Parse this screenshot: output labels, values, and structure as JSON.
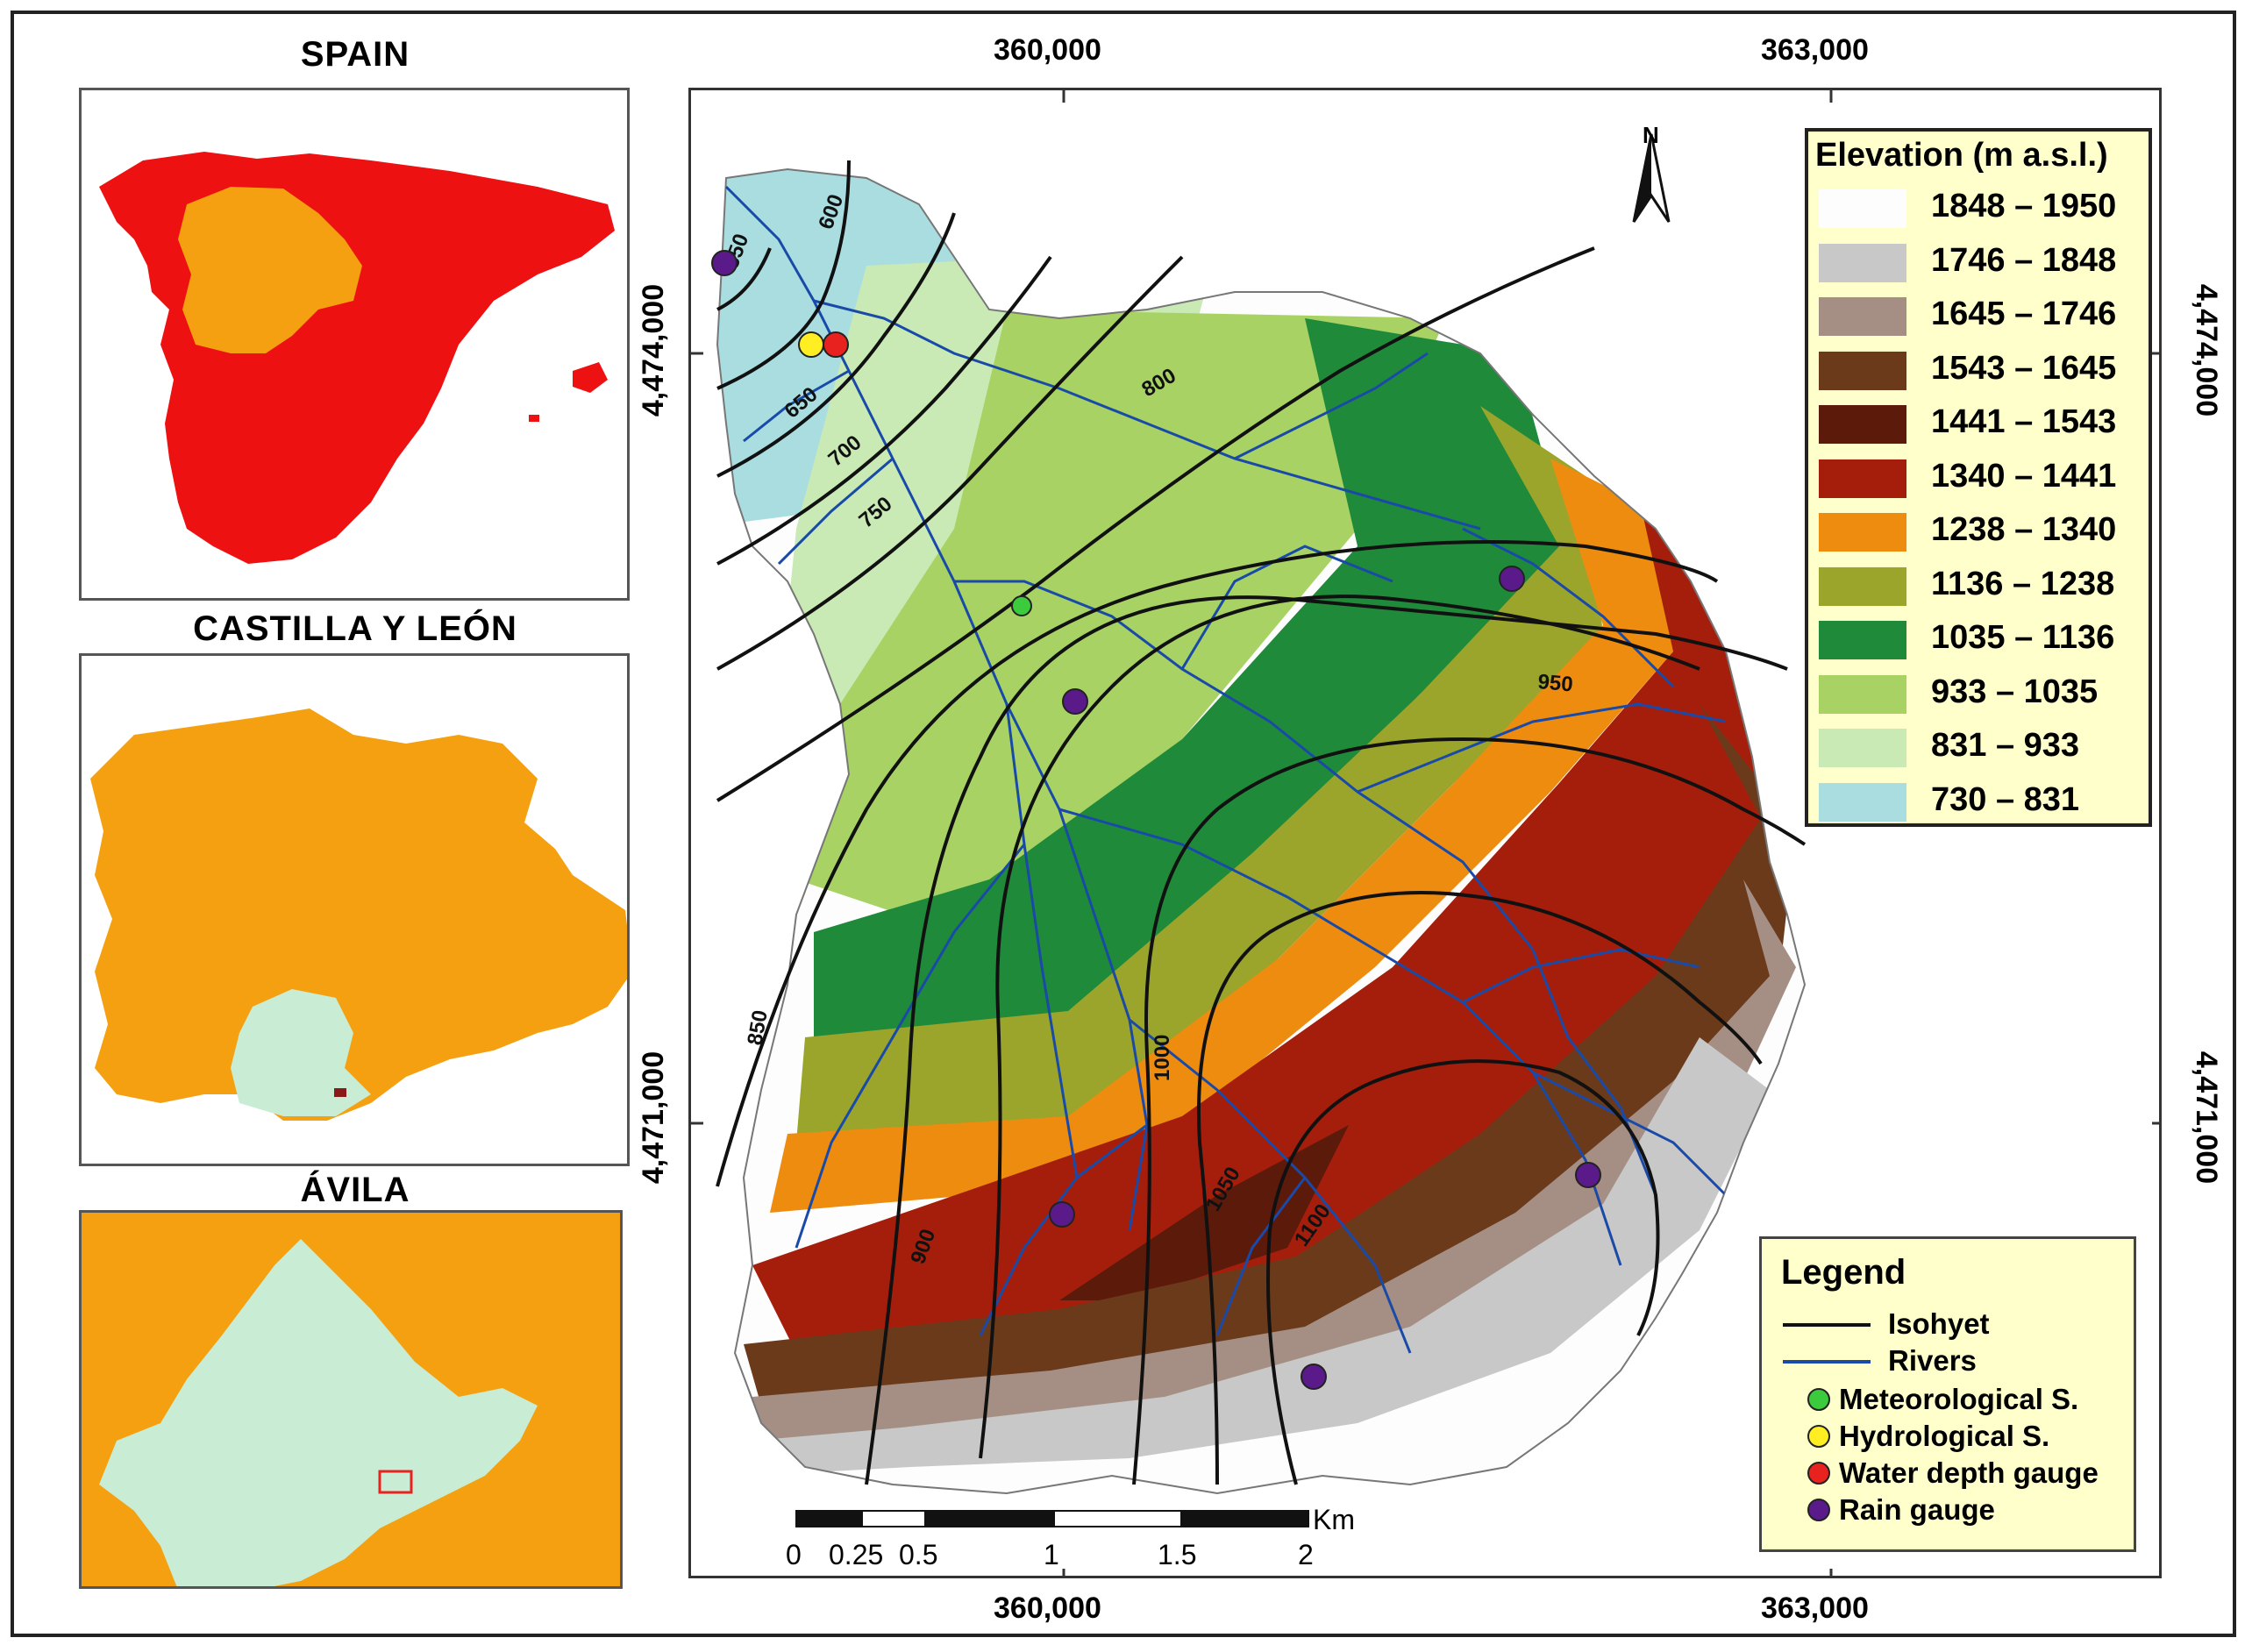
{
  "insets": {
    "spain": {
      "title": "SPAIN"
    },
    "castilla": {
      "title": "CASTILLA Y LEÓN"
    },
    "avila": {
      "title": "ÁVILA"
    }
  },
  "coordinates": {
    "top": [
      "360,000",
      "363,000"
    ],
    "bottom": [
      "360,000",
      "363,000"
    ],
    "left": [
      "4,474,000",
      "4,471,000"
    ],
    "right": [
      "4,474,000",
      "4,471,000"
    ]
  },
  "north_arrow": {
    "label": "N"
  },
  "elevation_legend": {
    "title": "Elevation (m a.s.l.)",
    "classes": [
      {
        "label": "1848 – 1950",
        "color": "#fdfdfd"
      },
      {
        "label": "1746 – 1848",
        "color": "#c8c8c8"
      },
      {
        "label": "1645 – 1746",
        "color": "#a58f84"
      },
      {
        "label": "1543 – 1645",
        "color": "#6b3a1a"
      },
      {
        "label": "1441 – 1543",
        "color": "#5c1a0b"
      },
      {
        "label": "1340 – 1441",
        "color": "#a51e0c"
      },
      {
        "label": "1238 – 1340",
        "color": "#ee8c10"
      },
      {
        "label": "1136 – 1238",
        "color": "#9ba52c"
      },
      {
        "label": "1035 – 1136",
        "color": "#1f8a3a"
      },
      {
        "label": "933 – 1035",
        "color": "#a8d264"
      },
      {
        "label": "831 – 933",
        "color": "#c9e9b5"
      },
      {
        "label": "730 – 831",
        "color": "#a9dde0"
      }
    ]
  },
  "isohyets": [
    "550",
    "600",
    "650",
    "700",
    "750",
    "800",
    "850",
    "900",
    "950",
    "1000",
    "1050",
    "1100"
  ],
  "legend": {
    "title": "Legend",
    "items": [
      {
        "label": "Isohyet",
        "symbol": "line",
        "color": "#111111"
      },
      {
        "label": "Rivers",
        "symbol": "line",
        "color": "#1a4aa8"
      },
      {
        "label": "Meteorological S.",
        "symbol": "dot",
        "color": "#3ccb3c"
      },
      {
        "label": "Hydrological S.",
        "symbol": "dot",
        "color": "#ffee22"
      },
      {
        "label": "Water depth gauge",
        "symbol": "dot",
        "color": "#e8231f"
      },
      {
        "label": "Rain gauge",
        "symbol": "dot",
        "color": "#5a1a8a"
      }
    ]
  },
  "scale_bar": {
    "unit": "Km",
    "ticks": [
      "0",
      "0.25",
      "0.5",
      "1",
      "1.5",
      "2"
    ]
  }
}
